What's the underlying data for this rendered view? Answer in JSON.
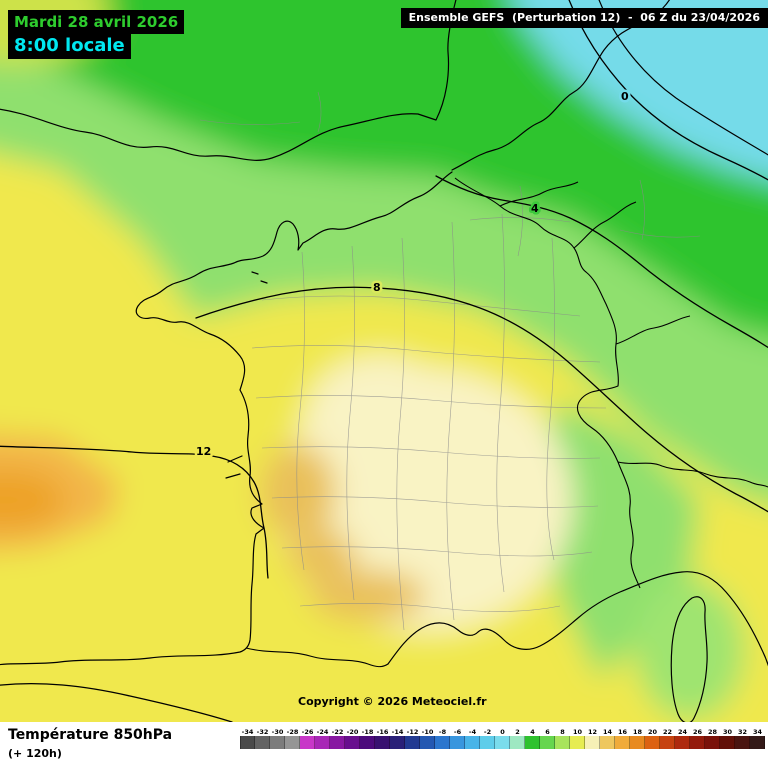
{
  "header": {
    "date_line": "Mardi 28 avril 2026",
    "time_line": "8:00 locale",
    "model_line": "Ensemble GEFS  (Perturbation 12)  -  06 Z du 23/04/2026"
  },
  "colors": {
    "date_text": "#2ecc2e",
    "time_text": "#00e8f0",
    "header_bg": "#000000"
  },
  "map": {
    "copyright": "Copyright © 2026 Meteociel.fr",
    "contour_labels": [
      {
        "value": "0"
      },
      {
        "value": "4"
      },
      {
        "value": "8"
      },
      {
        "value": "12"
      }
    ]
  },
  "footer": {
    "title": "Température 850hPa",
    "subtitle": "(+ 120h)",
    "scale_values": [
      -34,
      -32,
      -30,
      -28,
      -26,
      -24,
      -22,
      -20,
      -18,
      -16,
      -14,
      -12,
      -10,
      -8,
      -6,
      -4,
      -2,
      0,
      2,
      4,
      6,
      8,
      10,
      12,
      14,
      16,
      18,
      20,
      22,
      24,
      26,
      28,
      30,
      32,
      34
    ],
    "scale_colors": [
      "#4a4a4a",
      "#636363",
      "#7c7c7c",
      "#959595",
      "#c837c8",
      "#a827b6",
      "#8818a2",
      "#680e8e",
      "#4c0a7c",
      "#381070",
      "#2a2078",
      "#223a92",
      "#2458b2",
      "#2c76ce",
      "#3896de",
      "#48b4e8",
      "#5ecdea",
      "#7adcec",
      "#9ee8c2",
      "#2ec22e",
      "#66d64e",
      "#a8e45c",
      "#e6ec52",
      "#f6f0b6",
      "#eec75e",
      "#f0ab3a",
      "#e88a20",
      "#dc6212",
      "#c64210",
      "#ae2a0e",
      "#941b0c",
      "#7a120a",
      "#621008",
      "#4a1410",
      "#341a18"
    ]
  }
}
